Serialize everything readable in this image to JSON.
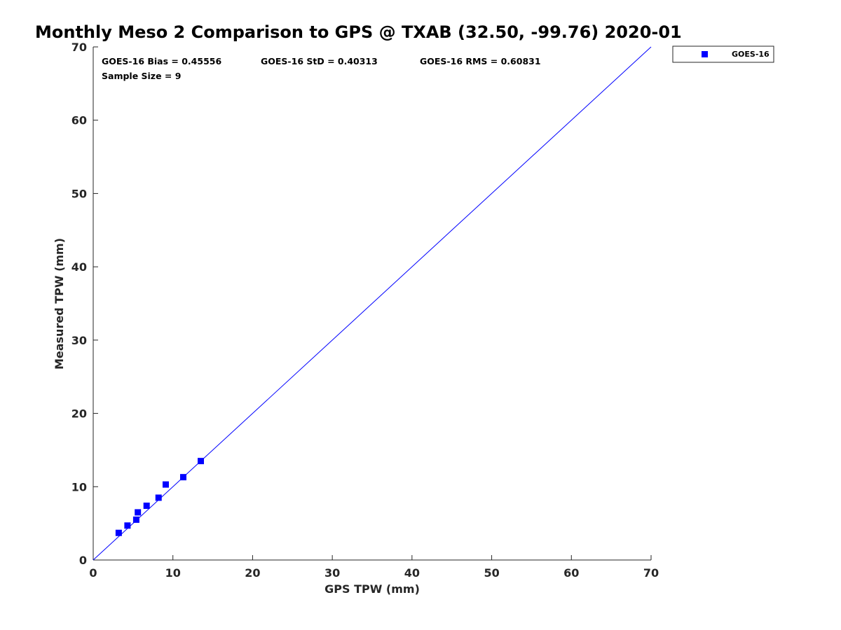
{
  "chart_data": {
    "type": "scatter",
    "title": "Monthly Meso 2 Comparison to GPS @ TXAB (32.50, -99.76) 2020-01",
    "xlabel": "GPS TPW (mm)",
    "ylabel": "Measured TPW (mm)",
    "xlim": [
      0,
      70
    ],
    "ylim": [
      0,
      70
    ],
    "xticks": [
      "0",
      "10",
      "20",
      "30",
      "40",
      "50",
      "60",
      "70"
    ],
    "yticks": [
      "0",
      "10",
      "20",
      "30",
      "40",
      "50",
      "60",
      "70"
    ],
    "grid": false,
    "legend_position": "outside-top-right",
    "reference_line": {
      "type": "one-to-one",
      "from": [
        0,
        0
      ],
      "to": [
        70,
        70
      ],
      "color": "#0000ff"
    },
    "annotations": [
      "GOES-16 Bias = 0.45556",
      "GOES-16 StD = 0.40313",
      "GOES-16 RMS = 0.60831",
      "Sample Size = 9"
    ],
    "series": [
      {
        "name": "GOES-16",
        "color": "#0000ff",
        "marker": "square",
        "points": [
          {
            "x": 3.2,
            "y": 3.7
          },
          {
            "x": 4.3,
            "y": 4.7
          },
          {
            "x": 5.4,
            "y": 5.5
          },
          {
            "x": 5.6,
            "y": 6.5
          },
          {
            "x": 6.7,
            "y": 7.4
          },
          {
            "x": 8.2,
            "y": 8.5
          },
          {
            "x": 9.1,
            "y": 10.3
          },
          {
            "x": 11.3,
            "y": 11.3
          },
          {
            "x": 13.5,
            "y": 13.5
          }
        ]
      }
    ]
  }
}
